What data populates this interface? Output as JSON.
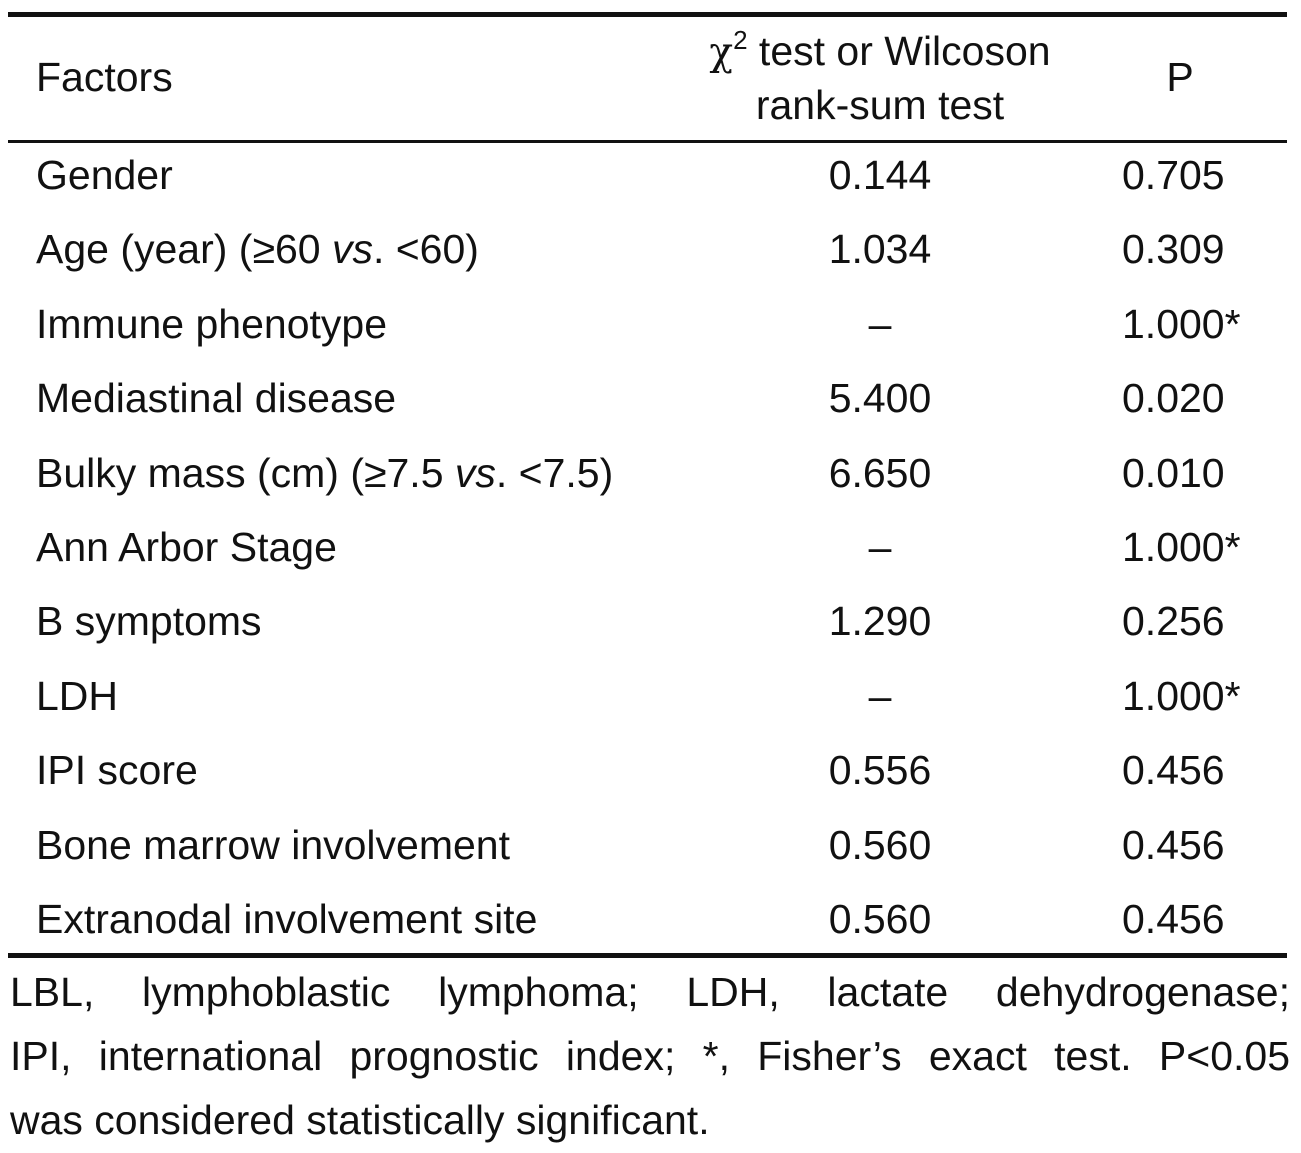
{
  "table": {
    "header": {
      "factors": "Factors",
      "test_symbol": "χ",
      "test_superscript": "2",
      "test_line1_rest": " test or Wilcoson",
      "test_line2": "rank-sum test",
      "p": "P"
    },
    "rows": [
      {
        "factor": "Gender",
        "stat": "0.144",
        "p": "0.705"
      },
      {
        "factor_pre": "Age (year) (≥60 ",
        "factor_ital": "vs",
        "factor_post": ". <60)",
        "stat": "1.034",
        "p": "0.309"
      },
      {
        "factor": "Immune phenotype",
        "stat": "–",
        "p": "1.000*"
      },
      {
        "factor": "Mediastinal disease",
        "stat": "5.400",
        "p": "0.020"
      },
      {
        "factor_pre": "Bulky mass (cm) (≥7.5 ",
        "factor_ital": "vs",
        "factor_post": ". <7.5)",
        "stat": "6.650",
        "p": "0.010"
      },
      {
        "factor": "Ann Arbor Stage",
        "stat": "–",
        "p": "1.000*"
      },
      {
        "factor": "B symptoms",
        "stat": "1.290",
        "p": "0.256"
      },
      {
        "factor": "LDH",
        "stat": "–",
        "p": "1.000*"
      },
      {
        "factor": "IPI score",
        "stat": "0.556",
        "p": "0.456"
      },
      {
        "factor": "Bone marrow involvement",
        "stat": "0.560",
        "p": "0.456"
      },
      {
        "factor": "Extranodal involvement site",
        "stat": "0.560",
        "p": "0.456"
      }
    ]
  },
  "footnote": {
    "line1": "LBL, lymphoblastic lymphoma; LDH, lactate dehydrogenase;",
    "line2": "IPI, international prognostic index; *, Fisher’s exact test. P<0.05",
    "line3": "was considered statistically significant."
  }
}
